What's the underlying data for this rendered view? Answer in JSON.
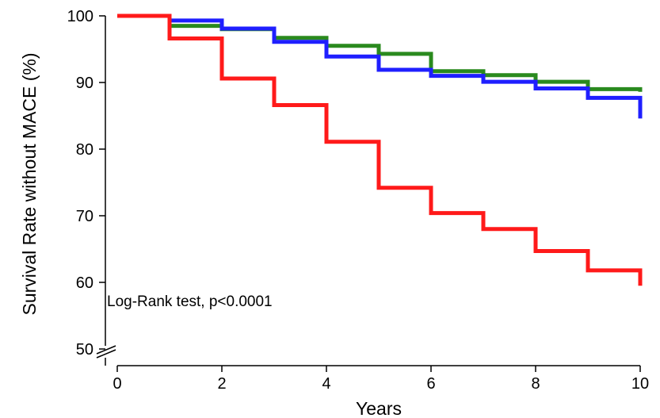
{
  "chart_data": {
    "type": "line",
    "step": true,
    "xlabel": "Years",
    "ylabel": "Survival Rate without MACE (%)",
    "xlim": [
      0,
      10
    ],
    "ylim": [
      50,
      100
    ],
    "y_axis_break": true,
    "x_ticks": [
      "0",
      "2",
      "4",
      "6",
      "8",
      "10"
    ],
    "y_ticks": [
      "50",
      "60",
      "70",
      "80",
      "90",
      "100"
    ],
    "grid": false,
    "annotation": "Log-Rank test, p<0.0001",
    "series": [
      {
        "color": "#2a8a1e",
        "x": [
          0,
          1,
          2,
          3,
          4,
          5,
          6,
          7,
          8,
          9,
          10,
          10
        ],
        "y": [
          100,
          98.5,
          98.0,
          96.7,
          95.5,
          94.3,
          91.7,
          91.1,
          90.1,
          89.0,
          89.0,
          88.6
        ]
      },
      {
        "color": "#1f1fff",
        "x": [
          0,
          1,
          2,
          3,
          4,
          5,
          6,
          7,
          8,
          9,
          10,
          10
        ],
        "y": [
          100,
          99.3,
          98.1,
          96.1,
          93.9,
          91.9,
          91.0,
          90.1,
          89.1,
          87.7,
          87.7,
          84.6
        ]
      },
      {
        "color": "#ff1a1a",
        "x": [
          0,
          1,
          2,
          3,
          4,
          5,
          6,
          7,
          8,
          9,
          10,
          10
        ],
        "y": [
          100,
          96.6,
          90.6,
          86.6,
          81.1,
          74.2,
          70.4,
          68.0,
          64.7,
          61.8,
          61.8,
          59.5
        ]
      }
    ]
  }
}
